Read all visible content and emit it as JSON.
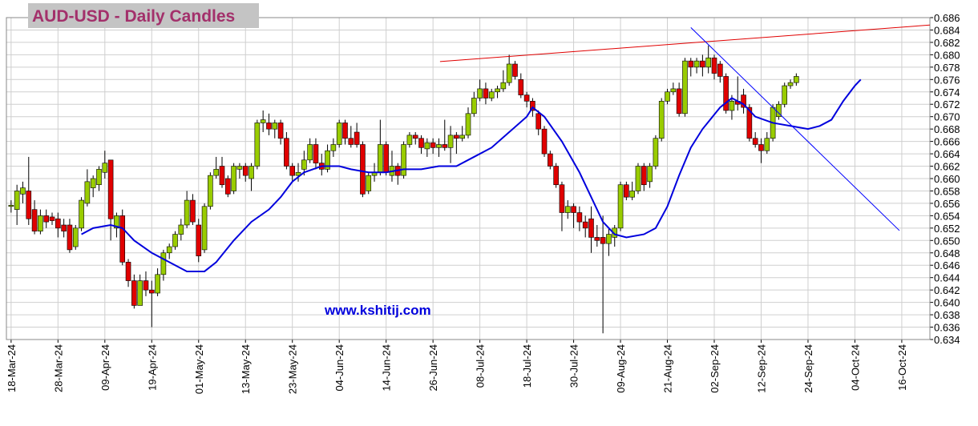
{
  "chart_data": {
    "type": "candlestick",
    "title": "AUD-USD - Daily Candles",
    "watermark": "www.kshitij.com",
    "up_color": "#99cc00",
    "down_color": "#e00000",
    "grid": true,
    "xlim": [
      -0.8,
      156.8
    ],
    "ylim": [
      0.634,
      0.686
    ],
    "yticks": [
      0.686,
      0.684,
      0.682,
      {
        "value": 0.68,
        "label": "0.680"
      },
      0.678,
      0.676,
      0.674,
      0.672,
      {
        "value": 0.67,
        "label": "0.670"
      },
      0.668,
      0.666,
      0.664,
      0.662,
      {
        "value": 0.66,
        "label": "0.660"
      },
      0.658,
      0.656,
      0.654,
      0.652,
      {
        "value": 0.65,
        "label": "0.650"
      },
      0.648,
      0.646,
      0.644,
      0.642,
      {
        "value": 0.64,
        "label": "0.640"
      },
      0.638,
      0.636,
      0.634
    ],
    "xticks": [
      {
        "value": 0,
        "label": "18-Mar-24"
      },
      {
        "value": 8,
        "label": "28-Mar-24"
      },
      {
        "value": 16,
        "label": "09-Apr-24"
      },
      {
        "value": 24,
        "label": "19-Apr-24"
      },
      {
        "value": 32,
        "label": "01-May-24"
      },
      {
        "value": 40,
        "label": "13-May-24"
      },
      {
        "value": 48,
        "label": "23-May-24"
      },
      {
        "value": 56,
        "label": "04-Jun-24"
      },
      {
        "value": 64,
        "label": "14-Jun-24"
      },
      {
        "value": 72,
        "label": "26-Jun-24"
      },
      {
        "value": 80,
        "label": "08-Jul-24"
      },
      {
        "value": 88,
        "label": "18-Jul-24"
      },
      {
        "value": 96,
        "label": "30-Jul-24"
      },
      {
        "value": 104,
        "label": "09-Aug-24"
      },
      {
        "value": 112,
        "label": "21-Aug-24"
      },
      {
        "value": 120,
        "label": "02-Sep-24"
      },
      {
        "value": 128,
        "label": "12-Sep-24"
      },
      {
        "value": 136,
        "label": "24-Sep-24"
      },
      {
        "value": 144,
        "label": "04-Oct-24"
      },
      {
        "value": 152,
        "label": "16-Oct-24"
      }
    ],
    "open": [
      0.6555,
      0.655,
      0.6575,
      0.658,
      0.655,
      0.6515,
      0.654,
      0.6538,
      0.6535,
      0.6525,
      0.6525,
      0.649,
      0.652,
      0.656,
      0.6585,
      0.659,
      0.661,
      0.663,
      0.652,
      0.654,
      0.6465,
      0.6435,
      0.6395,
      0.6435,
      0.642,
      0.6415,
      0.6445,
      0.648,
      0.649,
      0.651,
      0.6525,
      0.6565,
      0.6525,
      0.6485,
      0.6555,
      0.6605,
      0.662,
      0.66,
      0.658,
      0.6615,
      0.662,
      0.66,
      0.662,
      0.669,
      0.669,
      0.668,
      0.669,
      0.6665,
      0.662,
      0.6605,
      0.6615,
      0.663,
      0.6655,
      0.6625,
      0.6615,
      0.6645,
      0.6655,
      0.669,
      0.6665,
      0.6675,
      0.6655,
      0.658,
      0.6605,
      0.661,
      0.6655,
      0.6605,
      0.662,
      0.6605,
      0.6655,
      0.667,
      0.6665,
      0.6648,
      0.6658,
      0.665,
      0.6655,
      0.665,
      0.667,
      0.6665,
      0.667,
      0.6705,
      0.673,
      0.6745,
      0.673,
      0.674,
      0.6745,
      0.6755,
      0.6785,
      0.676,
      0.6735,
      0.6725,
      0.6705,
      0.668,
      0.664,
      0.662,
      0.659,
      0.6545,
      0.6555,
      0.6545,
      0.653,
      0.6535,
      0.6505,
      0.6505,
      0.6495,
      0.6505,
      0.652,
      0.659,
      0.657,
      0.658,
      0.662,
      0.6595,
      0.662,
      0.6665,
      0.6725,
      0.674,
      0.6745,
      0.6705,
      0.679,
      0.678,
      0.679,
      0.678,
      0.6795,
      0.6785,
      0.6765,
      0.671,
      0.6725,
      0.6735,
      0.6715,
      0.6665,
      0.6655,
      0.6645,
      0.6665,
      0.67,
      0.672,
      0.675,
      0.6755
    ],
    "high": [
      0.6565,
      0.659,
      0.6595,
      0.6635,
      0.6565,
      0.655,
      0.655,
      0.6545,
      0.6545,
      0.6535,
      0.6535,
      0.6525,
      0.657,
      0.6615,
      0.6605,
      0.662,
      0.6645,
      0.663,
      0.6545,
      0.655,
      0.647,
      0.6445,
      0.6445,
      0.645,
      0.6435,
      0.6455,
      0.6485,
      0.6495,
      0.6515,
      0.6535,
      0.658,
      0.6575,
      0.6535,
      0.656,
      0.661,
      0.6635,
      0.6635,
      0.6605,
      0.6625,
      0.6625,
      0.6625,
      0.6625,
      0.6695,
      0.671,
      0.6705,
      0.6695,
      0.6695,
      0.6675,
      0.6625,
      0.6625,
      0.6645,
      0.6665,
      0.6665,
      0.664,
      0.6655,
      0.6665,
      0.6695,
      0.6695,
      0.6685,
      0.669,
      0.666,
      0.661,
      0.6625,
      0.6695,
      0.666,
      0.6645,
      0.6625,
      0.666,
      0.6675,
      0.6675,
      0.667,
      0.6665,
      0.6665,
      0.6665,
      0.6695,
      0.6685,
      0.6675,
      0.6685,
      0.6715,
      0.674,
      0.676,
      0.6755,
      0.6745,
      0.675,
      0.6775,
      0.68,
      0.679,
      0.677,
      0.674,
      0.673,
      0.671,
      0.6685,
      0.6645,
      0.6625,
      0.6595,
      0.6565,
      0.656,
      0.6555,
      0.654,
      0.6555,
      0.6525,
      0.654,
      0.652,
      0.6525,
      0.6595,
      0.6595,
      0.6595,
      0.6625,
      0.6625,
      0.6625,
      0.667,
      0.673,
      0.6745,
      0.6755,
      0.6755,
      0.6795,
      0.6795,
      0.6795,
      0.68,
      0.6815,
      0.68,
      0.679,
      0.677,
      0.6735,
      0.6765,
      0.6745,
      0.672,
      0.6675,
      0.6665,
      0.6675,
      0.672,
      0.6725,
      0.6755,
      0.676,
      0.677
    ],
    "low": [
      0.6545,
      0.6525,
      0.656,
      0.6525,
      0.651,
      0.651,
      0.652,
      0.6525,
      0.6505,
      0.6505,
      0.648,
      0.6485,
      0.6515,
      0.6555,
      0.657,
      0.658,
      0.66,
      0.65,
      0.6505,
      0.646,
      0.6425,
      0.639,
      0.6395,
      0.641,
      0.636,
      0.641,
      0.6435,
      0.647,
      0.6485,
      0.65,
      0.652,
      0.6525,
      0.6465,
      0.648,
      0.655,
      0.66,
      0.6585,
      0.657,
      0.6575,
      0.66,
      0.6595,
      0.658,
      0.6615,
      0.6675,
      0.667,
      0.6665,
      0.6655,
      0.6615,
      0.6595,
      0.6595,
      0.6605,
      0.6625,
      0.6615,
      0.6605,
      0.661,
      0.6635,
      0.665,
      0.6655,
      0.665,
      0.665,
      0.657,
      0.6575,
      0.6595,
      0.6605,
      0.6605,
      0.6595,
      0.659,
      0.66,
      0.665,
      0.6655,
      0.664,
      0.6635,
      0.664,
      0.6635,
      0.6645,
      0.6625,
      0.664,
      0.666,
      0.6665,
      0.67,
      0.6725,
      0.672,
      0.6725,
      0.673,
      0.674,
      0.675,
      0.676,
      0.673,
      0.6715,
      0.67,
      0.667,
      0.6635,
      0.6615,
      0.6585,
      0.6515,
      0.6535,
      0.652,
      0.6515,
      0.6505,
      0.648,
      0.649,
      0.635,
      0.6475,
      0.649,
      0.6515,
      0.6565,
      0.6565,
      0.6575,
      0.658,
      0.6585,
      0.6615,
      0.666,
      0.672,
      0.6735,
      0.67,
      0.67,
      0.6765,
      0.677,
      0.6765,
      0.677,
      0.676,
      0.6755,
      0.6705,
      0.6695,
      0.671,
      0.6705,
      0.666,
      0.665,
      0.6625,
      0.664,
      0.666,
      0.6695,
      0.6715,
      0.6745,
      0.675
    ],
    "close": [
      0.6557,
      0.658,
      0.6585,
      0.6535,
      0.6515,
      0.654,
      0.653,
      0.6532,
      0.652,
      0.6515,
      0.6485,
      0.652,
      0.6565,
      0.6595,
      0.66,
      0.6615,
      0.6625,
      0.6535,
      0.654,
      0.6465,
      0.6435,
      0.6395,
      0.6435,
      0.642,
      0.6415,
      0.6445,
      0.648,
      0.649,
      0.651,
      0.6525,
      0.6565,
      0.653,
      0.6475,
      0.6555,
      0.6605,
      0.6615,
      0.659,
      0.6575,
      0.662,
      0.662,
      0.6605,
      0.662,
      0.669,
      0.6695,
      0.668,
      0.669,
      0.6665,
      0.662,
      0.6605,
      0.661,
      0.663,
      0.6655,
      0.6625,
      0.6615,
      0.6645,
      0.6655,
      0.669,
      0.6665,
      0.6655,
      0.6655,
      0.6575,
      0.6605,
      0.661,
      0.6655,
      0.661,
      0.662,
      0.6605,
      0.6655,
      0.667,
      0.6665,
      0.665,
      0.6658,
      0.665,
      0.6655,
      0.665,
      0.667,
      0.6665,
      0.667,
      0.6705,
      0.673,
      0.6745,
      0.673,
      0.674,
      0.6745,
      0.6755,
      0.6785,
      0.6765,
      0.6735,
      0.6725,
      0.671,
      0.668,
      0.664,
      0.662,
      0.659,
      0.6545,
      0.6555,
      0.6545,
      0.653,
      0.652,
      0.6505,
      0.65,
      0.6495,
      0.651,
      0.652,
      0.659,
      0.657,
      0.658,
      0.662,
      0.659,
      0.662,
      0.6665,
      0.6725,
      0.674,
      0.6745,
      0.6705,
      0.679,
      0.678,
      0.679,
      0.678,
      0.6795,
      0.677,
      0.6765,
      0.671,
      0.6725,
      0.672,
      0.6715,
      0.6665,
      0.6655,
      0.6645,
      0.6665,
      0.6715,
      0.672,
      0.675,
      0.6755,
      0.6765
    ],
    "lines": [
      {
        "color": "#0000dd",
        "x": [
          12,
          14,
          17,
          19,
          21,
          24,
          27,
          30,
          33,
          35,
          38,
          41,
          44,
          46,
          48,
          50,
          53,
          56,
          58,
          61,
          64,
          67,
          70,
          73,
          76,
          79,
          82,
          85,
          88,
          89,
          91,
          94,
          97,
          99,
          101,
          103,
          105,
          108,
          110,
          112,
          114,
          116,
          118,
          121,
          123,
          125,
          127,
          130,
          133,
          136,
          138,
          140,
          142,
          144,
          145
        ],
        "values": [
          0.651,
          0.652,
          0.6525,
          0.652,
          0.65,
          0.648,
          0.6465,
          0.645,
          0.645,
          0.6465,
          0.65,
          0.653,
          0.655,
          0.657,
          0.6595,
          0.661,
          0.662,
          0.662,
          0.6615,
          0.661,
          0.661,
          0.6615,
          0.6615,
          0.662,
          0.662,
          0.6635,
          0.665,
          0.6675,
          0.67,
          0.6715,
          0.67,
          0.666,
          0.661,
          0.657,
          0.653,
          0.651,
          0.6505,
          0.651,
          0.652,
          0.6555,
          0.6605,
          0.665,
          0.668,
          0.6715,
          0.673,
          0.672,
          0.67,
          0.669,
          0.6685,
          0.668,
          0.6685,
          0.6695,
          0.6725,
          0.675,
          0.676
        ]
      },
      {
        "color": "#e00000",
        "x": [
          73.2,
          156.8
        ],
        "values": [
          0.6789,
          0.6848
        ]
      },
      {
        "color": "#0000ff",
        "x": [
          116,
          151.6
        ],
        "values": [
          0.6844,
          0.6516
        ]
      }
    ]
  }
}
